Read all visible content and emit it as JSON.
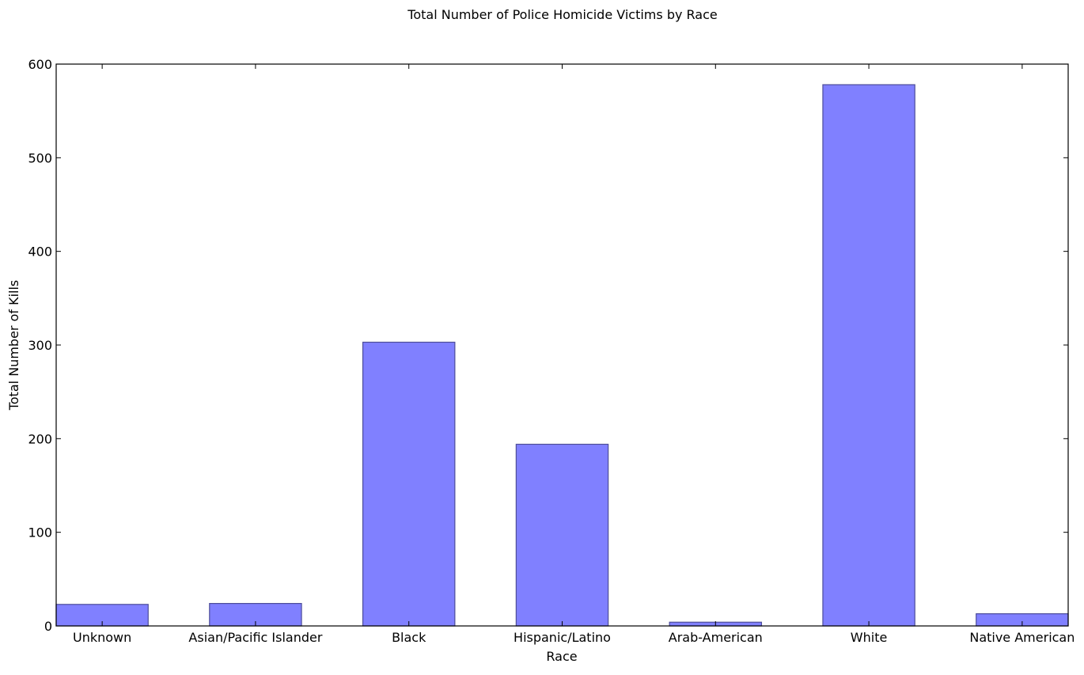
{
  "chart_data": {
    "type": "bar",
    "title": "Total Number of Police Homicide Victims by Race",
    "xlabel": "Race",
    "ylabel": "Total Number of Kills",
    "categories": [
      "Unknown",
      "Asian/Pacific Islander",
      "Black",
      "Hispanic/Latino",
      "Arab-American",
      "White",
      "Native American"
    ],
    "values": [
      23,
      24,
      303,
      194,
      4,
      578,
      13
    ],
    "ylim": [
      0,
      600
    ],
    "yticks": [
      0,
      100,
      200,
      300,
      400,
      500,
      600
    ],
    "grid": false,
    "bar_color": "#8080ff",
    "bar_edge_color": "#4d4d99"
  }
}
